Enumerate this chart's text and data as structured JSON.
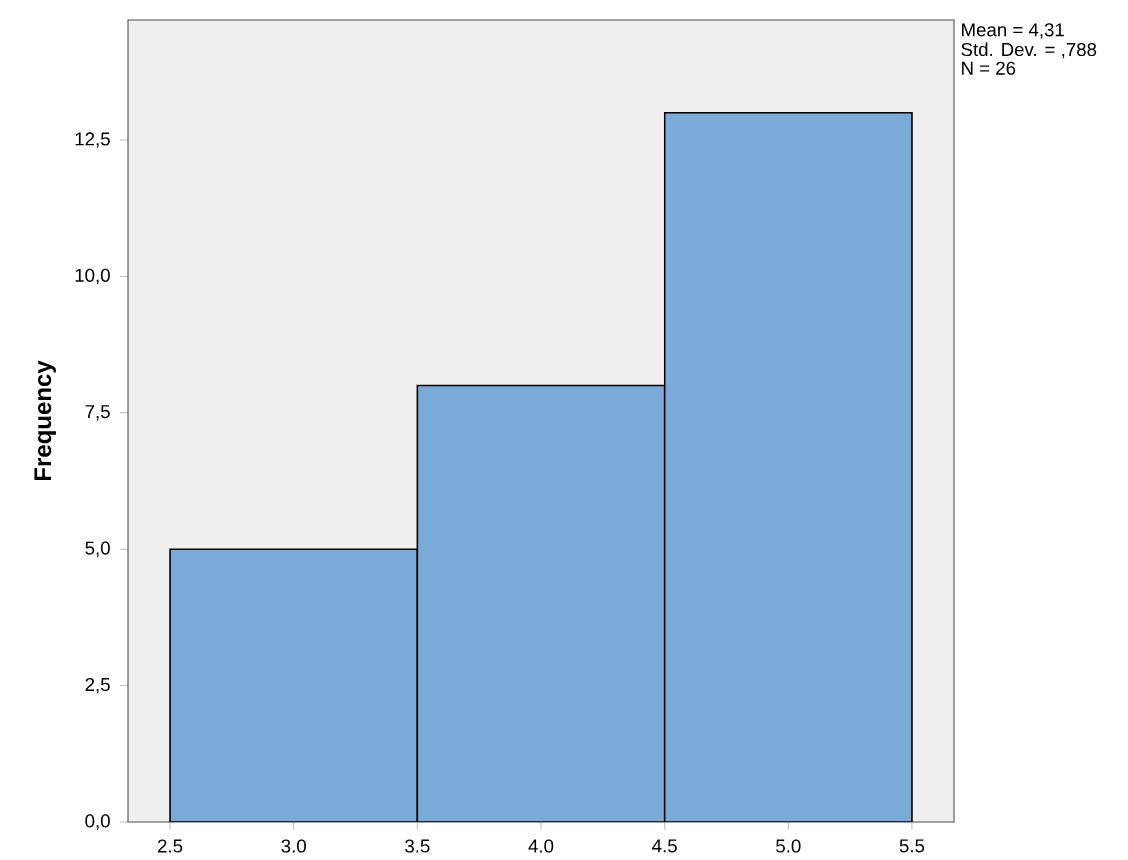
{
  "chart_data": {
    "type": "histogram",
    "ylabel": "Frequency",
    "bins": [
      2.5,
      3.5,
      4.5,
      5.5
    ],
    "values": [
      5,
      8,
      13
    ],
    "color": "#7aaad7",
    "xlim": [
      2.33,
      5.67
    ],
    "ylim": [
      0,
      14.7
    ],
    "xticks": [
      {
        "value": 2.5,
        "label": "2.5"
      },
      {
        "value": 3.0,
        "label": "3.0"
      },
      {
        "value": 3.5,
        "label": "3.5"
      },
      {
        "value": 4.0,
        "label": "4.0"
      },
      {
        "value": 4.5,
        "label": "4.5"
      },
      {
        "value": 5.0,
        "label": "5.0"
      },
      {
        "value": 5.5,
        "label": "5.5"
      }
    ],
    "yticks": [
      {
        "value": 0,
        "label": "0,0"
      },
      {
        "value": 2.5,
        "label": "2,5"
      },
      {
        "value": 5,
        "label": "5,0"
      },
      {
        "value": 7.5,
        "label": "7,5"
      },
      {
        "value": 10,
        "label": "10,0"
      },
      {
        "value": 12.5,
        "label": "12,5"
      }
    ],
    "grid": false,
    "annotations": [
      "Mean = 4,31",
      "Std. Dev. = ,788",
      "N = 26"
    ]
  }
}
